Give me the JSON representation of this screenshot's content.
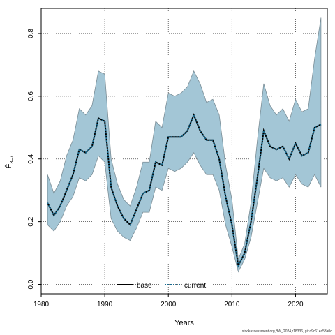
{
  "chart_data": {
    "type": "line",
    "title": "",
    "xlabel": "Years",
    "ylabel": "F̄",
    "ylabel_sub": "3–7",
    "xlim": [
      1980,
      2025
    ],
    "ylim": [
      -0.03,
      0.88
    ],
    "grid": true,
    "legend_position": "bottom",
    "x_ticks": [
      1980,
      1990,
      2000,
      2010,
      2020
    ],
    "y_ticks": [
      0.0,
      0.2,
      0.4,
      0.6,
      0.8
    ],
    "x_tick_labels": [
      "1980",
      "1990",
      "2000",
      "2010",
      "2020"
    ],
    "y_tick_labels": [
      "0.0",
      "0.2",
      "0.4",
      "0.6",
      "0.8"
    ],
    "colors": {
      "band": "#a3c6d6",
      "band_edge": "#7a8d96",
      "line": "#000000",
      "current": "#1a6b8f"
    },
    "x": [
      1981,
      1982,
      1983,
      1984,
      1985,
      1986,
      1987,
      1988,
      1989,
      1990,
      1991,
      1992,
      1993,
      1994,
      1995,
      1996,
      1997,
      1998,
      1999,
      2000,
      2001,
      2002,
      2003,
      2004,
      2005,
      2006,
      2007,
      2008,
      2009,
      2010,
      2011,
      2012,
      2013,
      2014,
      2015,
      2016,
      2017,
      2018,
      2019,
      2020,
      2021,
      2022,
      2023,
      2024
    ],
    "series": [
      {
        "name": "base",
        "style": "solid",
        "values": [
          0.26,
          0.22,
          0.25,
          0.3,
          0.35,
          0.43,
          0.42,
          0.44,
          0.53,
          0.52,
          0.31,
          0.25,
          0.21,
          0.19,
          0.24,
          0.29,
          0.3,
          0.39,
          0.38,
          0.47,
          0.47,
          0.47,
          0.49,
          0.54,
          0.49,
          0.46,
          0.46,
          0.4,
          0.28,
          0.19,
          0.06,
          0.1,
          0.2,
          0.34,
          0.49,
          0.44,
          0.43,
          0.44,
          0.4,
          0.45,
          0.41,
          0.42,
          0.5,
          0.51
        ]
      },
      {
        "name": "current",
        "style": "dotted",
        "values": [
          0.26,
          0.22,
          0.25,
          0.3,
          0.35,
          0.43,
          0.42,
          0.44,
          0.53,
          0.52,
          0.31,
          0.25,
          0.21,
          0.19,
          0.24,
          0.29,
          0.3,
          0.39,
          0.38,
          0.47,
          0.47,
          0.47,
          0.49,
          0.54,
          0.49,
          0.46,
          0.46,
          0.4,
          0.28,
          0.19,
          0.06,
          0.1,
          0.2,
          0.34,
          0.49,
          0.44,
          0.43,
          0.44,
          0.4,
          0.45,
          0.41,
          0.42,
          0.5,
          0.51
        ]
      }
    ],
    "band": {
      "lower": [
        0.19,
        0.17,
        0.2,
        0.25,
        0.28,
        0.34,
        0.33,
        0.35,
        0.41,
        0.39,
        0.21,
        0.17,
        0.15,
        0.14,
        0.18,
        0.23,
        0.23,
        0.31,
        0.3,
        0.37,
        0.36,
        0.37,
        0.39,
        0.42,
        0.38,
        0.35,
        0.35,
        0.3,
        0.19,
        0.12,
        0.04,
        0.08,
        0.15,
        0.26,
        0.37,
        0.34,
        0.33,
        0.34,
        0.31,
        0.35,
        0.32,
        0.31,
        0.35,
        0.31
      ],
      "upper": [
        0.35,
        0.29,
        0.33,
        0.41,
        0.46,
        0.56,
        0.54,
        0.57,
        0.68,
        0.67,
        0.4,
        0.32,
        0.27,
        0.25,
        0.31,
        0.39,
        0.39,
        0.52,
        0.5,
        0.61,
        0.6,
        0.61,
        0.63,
        0.68,
        0.64,
        0.58,
        0.59,
        0.54,
        0.38,
        0.27,
        0.08,
        0.13,
        0.26,
        0.46,
        0.64,
        0.57,
        0.54,
        0.56,
        0.52,
        0.59,
        0.55,
        0.56,
        0.72,
        0.85
      ]
    }
  },
  "legend": {
    "base": "base",
    "current": "current"
  },
  "credit": "stockassessment.org,BW_2024,r18336, git:c9c61ec53a0d"
}
